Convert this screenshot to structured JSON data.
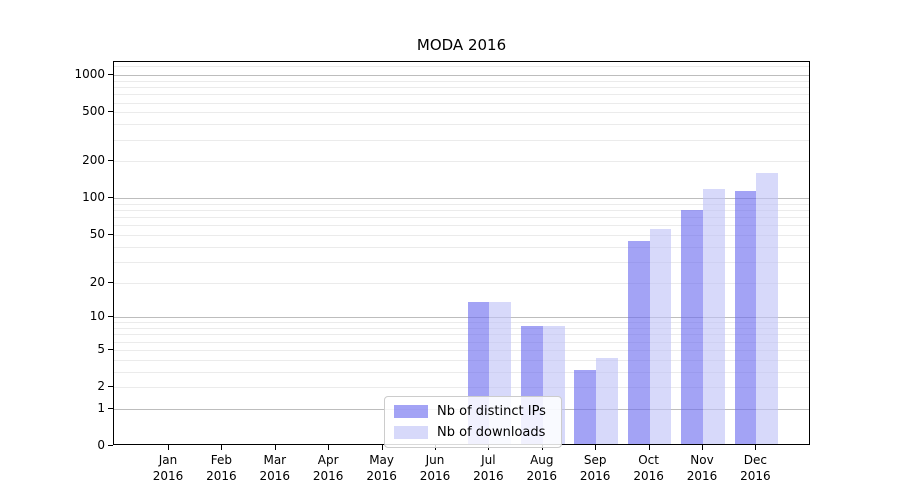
{
  "title": "MODA 2016",
  "legend": {
    "items": [
      {
        "label": "Nb of distinct IPs",
        "color": "rgba(106,106,239,0.62)"
      },
      {
        "label": "Nb of downloads",
        "color": "rgba(190,194,247,0.62)"
      }
    ]
  },
  "chart_data": {
    "type": "bar",
    "title": "MODA 2016",
    "categories": [
      "Jan 2016",
      "Feb 2016",
      "Mar 2016",
      "Apr 2016",
      "May 2016",
      "Jun 2016",
      "Jul 2016",
      "Aug 2016",
      "Sep 2016",
      "Oct 2016",
      "Nov 2016",
      "Dec 2016"
    ],
    "series": [
      {
        "name": "Nb of distinct IPs",
        "values": [
          0,
          0,
          0,
          0,
          0,
          0,
          13,
          8,
          3,
          43,
          77,
          110
        ]
      },
      {
        "name": "Nb of downloads",
        "values": [
          0,
          0,
          0,
          0,
          0,
          0,
          13,
          8,
          4,
          54,
          114,
          154
        ]
      }
    ],
    "y_ticks": [
      0,
      1,
      2,
      5,
      10,
      20,
      50,
      100,
      200,
      500,
      1000
    ],
    "y_scale": "symlog-log1p",
    "ylim": [
      0,
      1280
    ],
    "xlabel": "",
    "ylabel": "",
    "grid": true,
    "legend_position": "lower center"
  }
}
